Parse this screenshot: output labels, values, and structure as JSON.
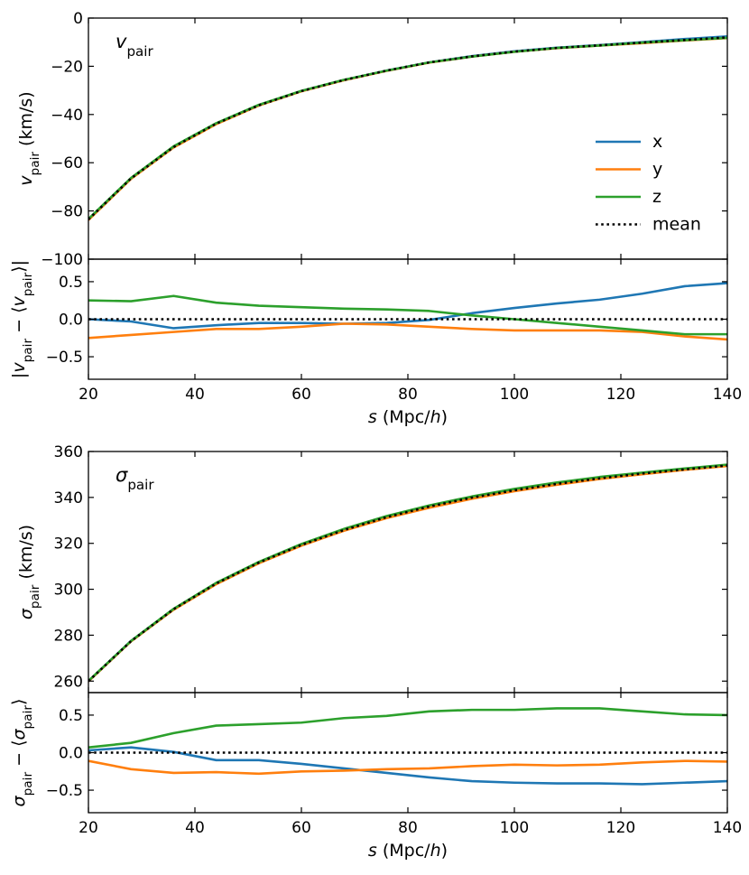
{
  "chart_data": [
    {
      "type": "line",
      "panel": "vpair",
      "panel_label": "v_pair",
      "ylabel": "v_pair (km/s)",
      "xlim": [
        20,
        140
      ],
      "ylim": [
        -100,
        0
      ],
      "xticks": [
        20,
        40,
        60,
        80,
        100,
        120,
        140
      ],
      "yticks": [
        0,
        -20,
        -40,
        -60,
        -80,
        -100
      ],
      "ytick_labels": [
        "0",
        "−20",
        "−40",
        "−60",
        "−80",
        "−100"
      ],
      "x": [
        20,
        28,
        36,
        44,
        52,
        60,
        68,
        76,
        84,
        92,
        100,
        108,
        116,
        124,
        132,
        140
      ],
      "series": [
        {
          "name": "x",
          "color": "#1f77b4",
          "style": "solid",
          "values": [
            -83.5,
            -66.5,
            -53.5,
            -43.8,
            -36.2,
            -30.3,
            -25.7,
            -21.8,
            -18.4,
            -15.8,
            -13.8,
            -12.3,
            -11.2,
            -10.0,
            -8.7,
            -7.6
          ]
        },
        {
          "name": "y",
          "color": "#ff7f0e",
          "style": "solid",
          "values": [
            -83.8,
            -66.7,
            -53.7,
            -44.0,
            -36.3,
            -30.4,
            -25.8,
            -21.9,
            -18.5,
            -16.0,
            -14.0,
            -12.5,
            -11.4,
            -10.4,
            -9.3,
            -8.3
          ]
        },
        {
          "name": "z",
          "color": "#2ca02c",
          "style": "solid",
          "values": [
            -83.3,
            -66.3,
            -53.2,
            -43.6,
            -36.0,
            -30.2,
            -25.6,
            -21.8,
            -18.4,
            -16.0,
            -14.0,
            -12.4,
            -11.4,
            -10.2,
            -9.2,
            -8.2
          ]
        },
        {
          "name": "mean",
          "color": "#000000",
          "style": "dotted",
          "values": [
            -83.5,
            -66.5,
            -53.5,
            -43.8,
            -36.2,
            -30.3,
            -25.7,
            -21.8,
            -18.4,
            -15.9,
            -13.9,
            -12.4,
            -11.3,
            -10.2,
            -9.1,
            -8.0
          ]
        }
      ],
      "legend": {
        "position": "right",
        "entries": [
          "x",
          "y",
          "z",
          "mean"
        ]
      }
    },
    {
      "type": "line",
      "panel": "vpair-resid",
      "ylabel": "v_pair − ⟨v_pair⟩",
      "xlabel": "s (Mpc/h)",
      "xlim": [
        20,
        140
      ],
      "ylim": [
        -0.8,
        0.8
      ],
      "xticks": [
        20,
        40,
        60,
        80,
        100,
        120,
        140
      ],
      "yticks": [
        0.5,
        0.0,
        -0.5
      ],
      "ytick_labels": [
        "0.5",
        "0.0",
        "−0.5"
      ],
      "x": [
        20,
        28,
        36,
        44,
        52,
        60,
        68,
        76,
        84,
        92,
        100,
        108,
        116,
        124,
        132,
        140
      ],
      "series": [
        {
          "name": "x",
          "color": "#1f77b4",
          "style": "solid",
          "values": [
            0.0,
            -0.03,
            -0.12,
            -0.08,
            -0.05,
            -0.05,
            -0.06,
            -0.05,
            -0.01,
            0.08,
            0.15,
            0.21,
            0.26,
            0.34,
            0.44,
            0.48
          ]
        },
        {
          "name": "y",
          "color": "#ff7f0e",
          "style": "solid",
          "values": [
            -0.25,
            -0.21,
            -0.17,
            -0.13,
            -0.13,
            -0.1,
            -0.06,
            -0.07,
            -0.1,
            -0.13,
            -0.15,
            -0.15,
            -0.15,
            -0.17,
            -0.23,
            -0.27
          ]
        },
        {
          "name": "z",
          "color": "#2ca02c",
          "style": "solid",
          "values": [
            0.25,
            0.24,
            0.31,
            0.22,
            0.18,
            0.16,
            0.14,
            0.13,
            0.11,
            0.05,
            0.0,
            -0.05,
            -0.1,
            -0.15,
            -0.2,
            -0.2
          ]
        },
        {
          "name": "mean",
          "color": "#000000",
          "style": "dotted",
          "values": [
            0,
            0,
            0,
            0,
            0,
            0,
            0,
            0,
            0,
            0,
            0,
            0,
            0,
            0,
            0,
            0
          ]
        }
      ]
    },
    {
      "type": "line",
      "panel": "sigmapair",
      "panel_label": "sigma_pair",
      "ylabel": "sigma_pair (km/s)",
      "xlim": [
        20,
        140
      ],
      "ylim": [
        255,
        360
      ],
      "xticks": [
        20,
        40,
        60,
        80,
        100,
        120,
        140
      ],
      "yticks": [
        260,
        280,
        300,
        320,
        340,
        360
      ],
      "ytick_labels": [
        "260",
        "280",
        "300",
        "320",
        "340",
        "360"
      ],
      "x": [
        20,
        28,
        36,
        44,
        52,
        60,
        68,
        76,
        84,
        92,
        100,
        108,
        116,
        124,
        132,
        140
      ],
      "series": [
        {
          "name": "x",
          "color": "#1f77b4",
          "style": "solid",
          "values": [
            260.0,
            277.5,
            291.3,
            302.4,
            311.5,
            319.2,
            325.7,
            331.2,
            335.7,
            339.6,
            342.9,
            345.7,
            348.1,
            350.2,
            352.1,
            353.8
          ]
        },
        {
          "name": "y",
          "color": "#ff7f0e",
          "style": "solid",
          "values": [
            259.9,
            277.3,
            291.1,
            302.2,
            311.3,
            319.0,
            325.5,
            331.0,
            335.5,
            339.4,
            342.7,
            345.5,
            348.0,
            350.1,
            352.0,
            353.7
          ]
        },
        {
          "name": "z",
          "color": "#2ca02c",
          "style": "solid",
          "values": [
            260.1,
            277.5,
            291.5,
            302.8,
            311.9,
            319.7,
            326.3,
            331.9,
            336.5,
            340.4,
            343.7,
            346.5,
            348.9,
            350.8,
            352.6,
            354.3
          ]
        },
        {
          "name": "mean",
          "color": "#000000",
          "style": "dotted",
          "values": [
            260.0,
            277.4,
            291.3,
            302.5,
            311.6,
            319.3,
            325.8,
            331.4,
            336.0,
            339.9,
            343.1,
            345.9,
            348.3,
            350.4,
            352.2,
            353.9
          ]
        }
      ]
    },
    {
      "type": "line",
      "panel": "sigmapair-resid",
      "ylabel": "sigma_pair − ⟨sigma_pair⟩",
      "xlabel": "s (Mpc/h)",
      "xlim": [
        20,
        140
      ],
      "ylim": [
        -0.8,
        0.8
      ],
      "xticks": [
        20,
        40,
        60,
        80,
        100,
        120,
        140
      ],
      "yticks": [
        0.5,
        0.0,
        -0.5
      ],
      "ytick_labels": [
        "0.5",
        "0.0",
        "−0.5"
      ],
      "x": [
        20,
        28,
        36,
        44,
        52,
        60,
        68,
        76,
        84,
        92,
        100,
        108,
        116,
        124,
        132,
        140
      ],
      "series": [
        {
          "name": "x",
          "color": "#1f77b4",
          "style": "solid",
          "values": [
            0.03,
            0.07,
            0.01,
            -0.1,
            -0.1,
            -0.15,
            -0.21,
            -0.27,
            -0.33,
            -0.38,
            -0.4,
            -0.41,
            -0.41,
            -0.42,
            -0.4,
            -0.38
          ]
        },
        {
          "name": "y",
          "color": "#ff7f0e",
          "style": "solid",
          "values": [
            -0.11,
            -0.22,
            -0.27,
            -0.26,
            -0.28,
            -0.25,
            -0.24,
            -0.22,
            -0.21,
            -0.18,
            -0.16,
            -0.17,
            -0.16,
            -0.13,
            -0.11,
            -0.12
          ]
        },
        {
          "name": "z",
          "color": "#2ca02c",
          "style": "solid",
          "values": [
            0.07,
            0.13,
            0.26,
            0.36,
            0.38,
            0.4,
            0.46,
            0.49,
            0.55,
            0.57,
            0.57,
            0.59,
            0.59,
            0.55,
            0.51,
            0.5
          ]
        },
        {
          "name": "mean",
          "color": "#000000",
          "style": "dotted",
          "values": [
            0,
            0,
            0,
            0,
            0,
            0,
            0,
            0,
            0,
            0,
            0,
            0,
            0,
            0,
            0,
            0
          ]
        }
      ]
    }
  ]
}
